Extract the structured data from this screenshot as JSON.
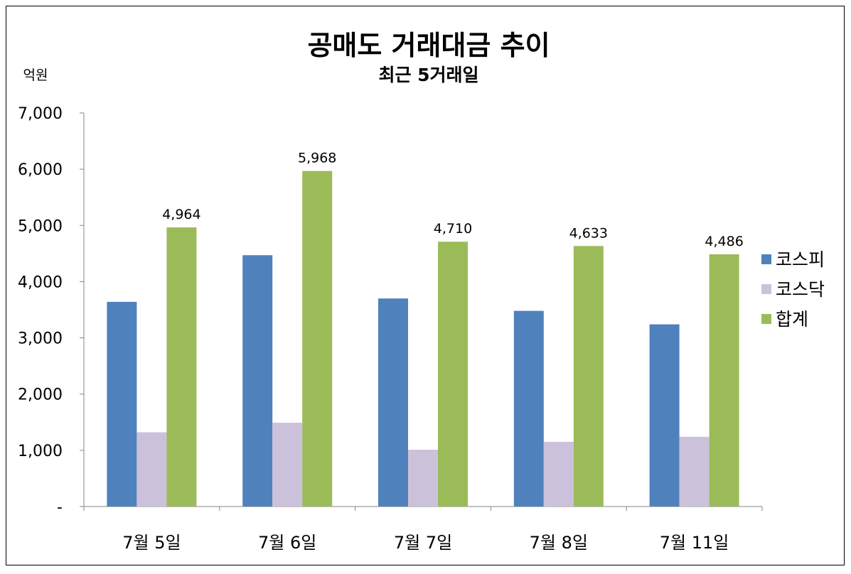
{
  "chart_data": {
    "type": "bar",
    "title": "공매도 거래대금 추이",
    "subtitle": "최근 5거래일",
    "ylabel": "억원",
    "ylim": [
      0,
      7000
    ],
    "yticks": [
      0,
      1000,
      2000,
      3000,
      4000,
      5000,
      6000,
      7000
    ],
    "ytick_labels": [
      "-",
      "1,000",
      "2,000",
      "3,000",
      "4,000",
      "5,000",
      "6,000",
      "7,000"
    ],
    "categories": [
      "7월 5일",
      "7월 6일",
      "7월 7일",
      "7월 8일",
      "7월 11일"
    ],
    "series": [
      {
        "name": "코스피",
        "color": "#4F81BD",
        "values": [
          3640,
          4470,
          3700,
          3480,
          3240
        ]
      },
      {
        "name": "코스닥",
        "color": "#CCC1DA",
        "values": [
          1320,
          1490,
          1010,
          1150,
          1240
        ]
      },
      {
        "name": "합계",
        "color": "#9BBB59",
        "values": [
          4964,
          5968,
          4710,
          4633,
          4486
        ],
        "data_labels": [
          "4,964",
          "5,968",
          "4,710",
          "4,633",
          "4,486"
        ]
      }
    ],
    "legend_position": "right",
    "grid": false
  }
}
